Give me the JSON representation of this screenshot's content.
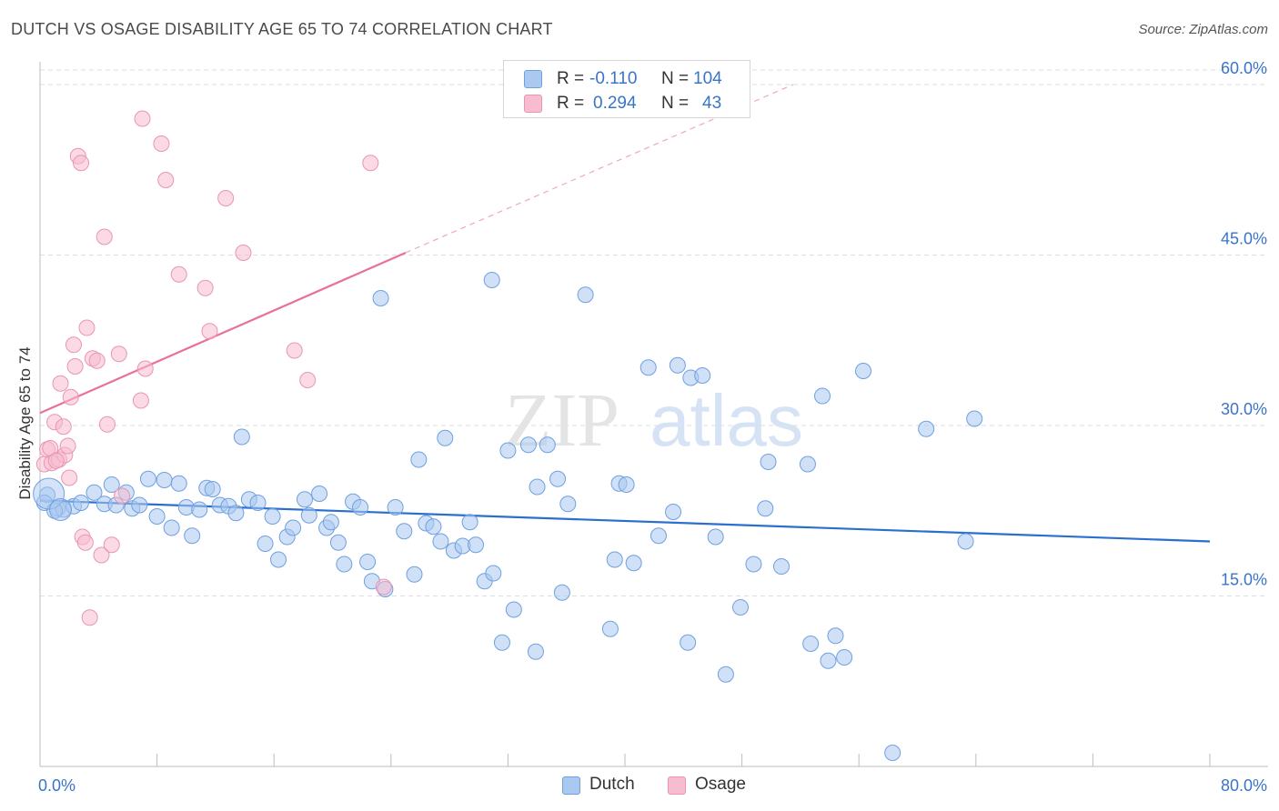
{
  "title": "DUTCH VS OSAGE DISABILITY AGE 65 TO 74 CORRELATION CHART",
  "source": "Source: ZipAtlas.com",
  "watermark": {
    "zip": "ZIP",
    "atlas": "atlas"
  },
  "stats_legend": {
    "rows": [
      {
        "r_label": "R =",
        "r_value": "-0.110",
        "n_label": "N =",
        "n_value": "104",
        "color": "#aac8f0"
      },
      {
        "r_label": "R =",
        "r_value": "0.294",
        "n_label": "N =",
        "n_value": "43",
        "color": "#f8bcd0"
      }
    ]
  },
  "bottom_legend": [
    {
      "label": "Dutch",
      "color": "#aac8f0"
    },
    {
      "label": "Osage",
      "color": "#f8bcd0"
    }
  ],
  "chart_data": {
    "type": "scatter",
    "title": "DUTCH VS OSAGE DISABILITY AGE 65 TO 74 CORRELATION CHART",
    "xlabel": "",
    "ylabel": "Disability Age 65 to 74",
    "xlim": [
      0,
      80
    ],
    "ylim": [
      0,
      62
    ],
    "x_tick_labels": [
      "0.0%",
      "80.0%"
    ],
    "y_ticks": [
      15,
      30,
      45,
      60
    ],
    "y_tick_labels": [
      "15.0%",
      "30.0%",
      "45.0%",
      "60.0%"
    ],
    "grid": "horizontal dashed",
    "legend_position": "top-center",
    "series": [
      {
        "name": "Dutch",
        "color": "#6fa0e0",
        "fill": "#aac8f0",
        "trend": {
          "x0": 0.0,
          "y0": 23.4,
          "x1": 80.0,
          "y1": 19.8
        },
        "points": [
          [
            0.5,
            23.9
          ],
          [
            1.2,
            22.7
          ],
          [
            1.6,
            22.6
          ],
          [
            2.3,
            22.9
          ],
          [
            2.8,
            23.2
          ],
          [
            3.7,
            24.1
          ],
          [
            4.4,
            23.1
          ],
          [
            4.9,
            24.8
          ],
          [
            5.2,
            23.0
          ],
          [
            5.9,
            24.1
          ],
          [
            6.3,
            22.7
          ],
          [
            6.8,
            23.0
          ],
          [
            7.4,
            25.3
          ],
          [
            8.0,
            22.0
          ],
          [
            8.5,
            25.2
          ],
          [
            9.0,
            21.0
          ],
          [
            9.5,
            24.9
          ],
          [
            10.0,
            22.8
          ],
          [
            10.4,
            20.3
          ],
          [
            10.9,
            22.6
          ],
          [
            11.4,
            24.5
          ],
          [
            11.8,
            24.4
          ],
          [
            12.3,
            23.0
          ],
          [
            12.9,
            22.9
          ],
          [
            13.4,
            22.3
          ],
          [
            13.8,
            29.0
          ],
          [
            14.3,
            23.5
          ],
          [
            14.9,
            23.2
          ],
          [
            15.4,
            19.6
          ],
          [
            15.9,
            22.0
          ],
          [
            16.3,
            18.2
          ],
          [
            16.9,
            20.2
          ],
          [
            17.3,
            21.0
          ],
          [
            18.1,
            23.5
          ],
          [
            18.4,
            22.1
          ],
          [
            19.1,
            24.0
          ],
          [
            19.6,
            21.0
          ],
          [
            19.9,
            21.5
          ],
          [
            20.4,
            19.7
          ],
          [
            20.8,
            17.8
          ],
          [
            21.4,
            23.3
          ],
          [
            21.9,
            22.8
          ],
          [
            22.4,
            18.0
          ],
          [
            22.7,
            16.3
          ],
          [
            23.6,
            15.6
          ],
          [
            23.3,
            41.2
          ],
          [
            24.3,
            22.8
          ],
          [
            24.9,
            20.7
          ],
          [
            25.6,
            16.9
          ],
          [
            25.9,
            27.0
          ],
          [
            26.4,
            21.4
          ],
          [
            26.9,
            21.1
          ],
          [
            27.4,
            19.8
          ],
          [
            27.7,
            28.9
          ],
          [
            28.3,
            19.0
          ],
          [
            28.9,
            19.4
          ],
          [
            29.4,
            21.5
          ],
          [
            29.8,
            19.5
          ],
          [
            30.4,
            16.3
          ],
          [
            31.0,
            17.0
          ],
          [
            30.9,
            42.8
          ],
          [
            31.6,
            10.9
          ],
          [
            32.0,
            27.8
          ],
          [
            32.4,
            13.8
          ],
          [
            33.4,
            28.3
          ],
          [
            33.9,
            10.1
          ],
          [
            34.0,
            24.6
          ],
          [
            34.7,
            28.3
          ],
          [
            35.4,
            25.3
          ],
          [
            35.7,
            15.3
          ],
          [
            36.1,
            23.1
          ],
          [
            37.3,
            41.5
          ],
          [
            39.0,
            12.1
          ],
          [
            39.3,
            18.2
          ],
          [
            39.6,
            24.9
          ],
          [
            40.1,
            24.8
          ],
          [
            40.6,
            17.9
          ],
          [
            41.6,
            35.1
          ],
          [
            42.3,
            20.3
          ],
          [
            43.3,
            22.4
          ],
          [
            43.6,
            35.3
          ],
          [
            44.3,
            10.9
          ],
          [
            44.5,
            34.2
          ],
          [
            45.3,
            34.4
          ],
          [
            46.2,
            20.2
          ],
          [
            46.9,
            8.1
          ],
          [
            47.9,
            14.0
          ],
          [
            48.8,
            17.8
          ],
          [
            49.6,
            22.7
          ],
          [
            49.8,
            26.8
          ],
          [
            50.7,
            17.6
          ],
          [
            52.5,
            26.6
          ],
          [
            52.7,
            10.8
          ],
          [
            53.5,
            32.6
          ],
          [
            53.9,
            9.3
          ],
          [
            54.4,
            11.5
          ],
          [
            55.0,
            9.6
          ],
          [
            56.3,
            34.8
          ],
          [
            58.3,
            1.2
          ],
          [
            60.6,
            29.7
          ],
          [
            63.3,
            19.8
          ],
          [
            63.9,
            30.6
          ],
          [
            0.3,
            23.2
          ],
          [
            1.0,
            22.5
          ]
        ]
      },
      {
        "name": "Osage",
        "color": "#e896b2",
        "fill": "#f8bcd0",
        "trend": {
          "x0": 0.0,
          "y0": 31.1,
          "x1": 25.0,
          "y1": 45.2
        },
        "trend_extension": {
          "x0": 25.0,
          "y0": 45.2,
          "x1": 51.5,
          "y1": 60.0
        },
        "points": [
          [
            0.3,
            26.6
          ],
          [
            0.5,
            27.9
          ],
          [
            0.8,
            26.7
          ],
          [
            1.0,
            30.3
          ],
          [
            1.3,
            27.0
          ],
          [
            1.4,
            33.7
          ],
          [
            1.6,
            29.9
          ],
          [
            1.7,
            27.4
          ],
          [
            1.9,
            28.2
          ],
          [
            2.0,
            25.4
          ],
          [
            2.1,
            32.5
          ],
          [
            2.3,
            37.1
          ],
          [
            2.4,
            35.2
          ],
          [
            2.6,
            53.7
          ],
          [
            2.8,
            53.1
          ],
          [
            2.9,
            20.2
          ],
          [
            3.1,
            19.7
          ],
          [
            3.2,
            38.6
          ],
          [
            3.4,
            13.1
          ],
          [
            3.6,
            35.9
          ],
          [
            3.9,
            35.7
          ],
          [
            4.2,
            18.6
          ],
          [
            4.4,
            46.6
          ],
          [
            4.6,
            30.1
          ],
          [
            4.9,
            19.5
          ],
          [
            5.4,
            36.3
          ],
          [
            5.6,
            23.8
          ],
          [
            6.9,
            32.2
          ],
          [
            7.2,
            35.0
          ],
          [
            7.0,
            57.0
          ],
          [
            8.3,
            54.8
          ],
          [
            8.6,
            51.6
          ],
          [
            9.5,
            43.3
          ],
          [
            11.3,
            42.1
          ],
          [
            11.6,
            38.3
          ],
          [
            12.7,
            50.0
          ],
          [
            13.9,
            45.2
          ],
          [
            17.4,
            36.6
          ],
          [
            18.3,
            34.0
          ],
          [
            22.6,
            53.1
          ],
          [
            23.5,
            15.8
          ],
          [
            0.7,
            28.0
          ],
          [
            1.1,
            26.9
          ]
        ]
      }
    ]
  }
}
